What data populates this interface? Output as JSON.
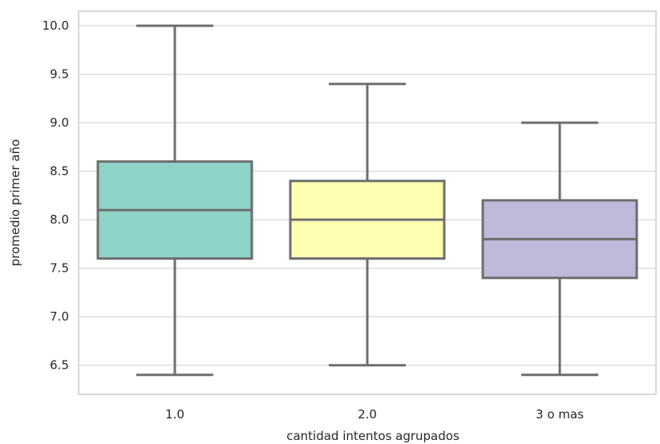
{
  "chart_data": {
    "type": "box",
    "xlabel": "cantidad intentos agrupados",
    "ylabel": "promedio primer año",
    "categories": [
      "1.0",
      "2.0",
      "3 o mas"
    ],
    "yticks": [
      "6.5",
      "7.0",
      "7.5",
      "8.0",
      "8.5",
      "9.0",
      "9.5",
      "10.0"
    ],
    "ytick_values": [
      6.5,
      7.0,
      7.5,
      8.0,
      8.5,
      9.0,
      9.5,
      10.0
    ],
    "ylim": [
      6.2,
      10.15
    ],
    "grid": true,
    "boxes": [
      {
        "category": "1.0",
        "min": 6.4,
        "q1": 7.6,
        "median": 8.1,
        "q3": 8.6,
        "max": 10.0,
        "color": "#8dd3c7"
      },
      {
        "category": "2.0",
        "min": 6.5,
        "q1": 7.6,
        "median": 8.0,
        "q3": 8.4,
        "max": 9.4,
        "color": "#ffffb3"
      },
      {
        "category": "3 o mas",
        "min": 6.4,
        "q1": 7.4,
        "median": 7.8,
        "q3": 8.2,
        "max": 9.0,
        "color": "#bebada"
      }
    ],
    "colors": {
      "line": "#6e6e6e",
      "grid": "#d9d9d9",
      "spine": "#cccccc"
    }
  }
}
